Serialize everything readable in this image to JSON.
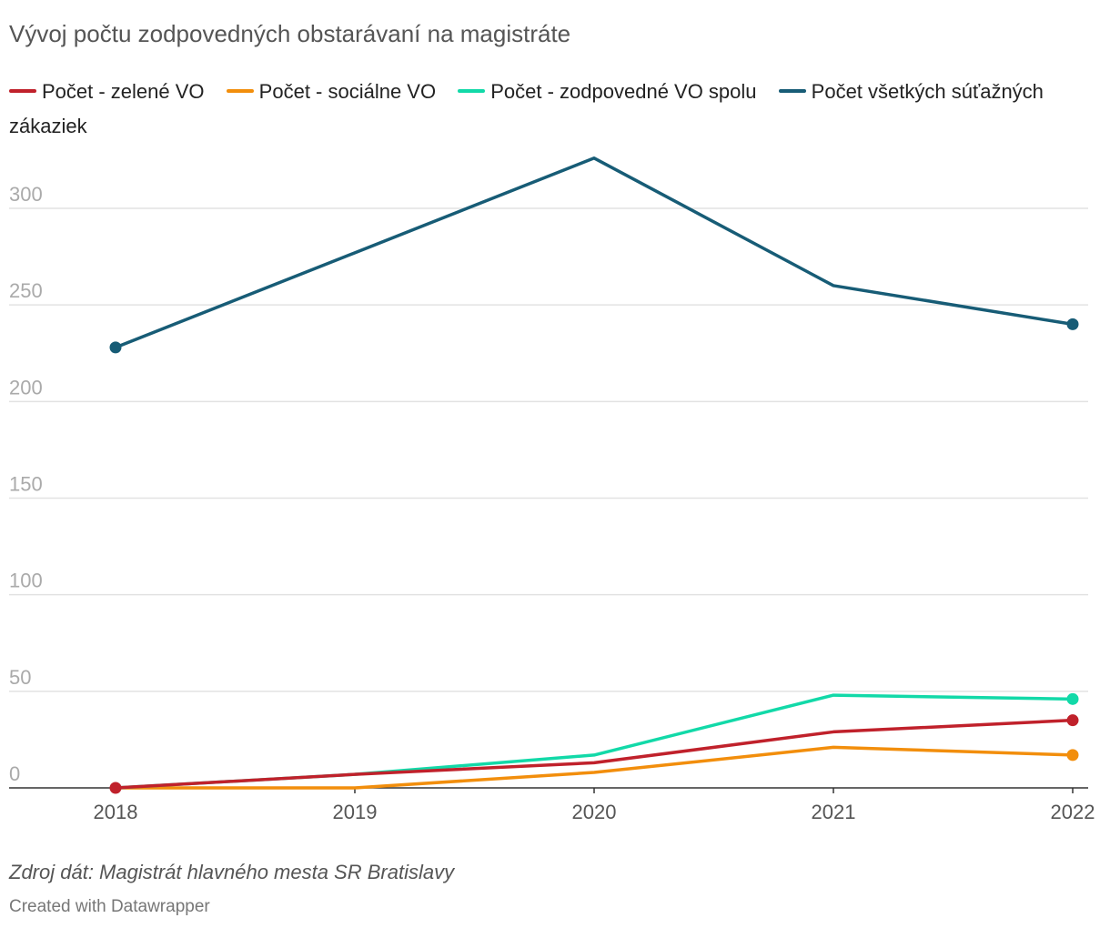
{
  "title": "Vývoj počtu zodpovedných obstarávaní na magistráte",
  "source": "Zdroj dát: Magistrát hlavného mesta SR Bratislavy",
  "credit": "Created with Datawrapper",
  "chart_data": {
    "type": "line",
    "x": [
      "2018",
      "2019",
      "2020",
      "2021",
      "2022"
    ],
    "ylim": [
      0,
      325
    ],
    "yticks": [
      0,
      50,
      100,
      150,
      200,
      250,
      300
    ],
    "grid": true,
    "legend_position": "top",
    "series": [
      {
        "name": "Počet - zelené VO",
        "color": "#c0212b",
        "values": [
          0,
          7,
          13,
          29,
          35
        ]
      },
      {
        "name": "Počet - sociálne VO",
        "color": "#f28e0c",
        "values": [
          0,
          0,
          8,
          21,
          17
        ]
      },
      {
        "name": "Počet - zodpovedné VO spolu",
        "color": "#12d9a8",
        "values": [
          0,
          7,
          17,
          48,
          46
        ]
      },
      {
        "name": "Počet všetkých súťažných zákaziek",
        "color": "#175c76",
        "values": [
          228,
          277,
          326,
          260,
          240
        ]
      }
    ]
  }
}
